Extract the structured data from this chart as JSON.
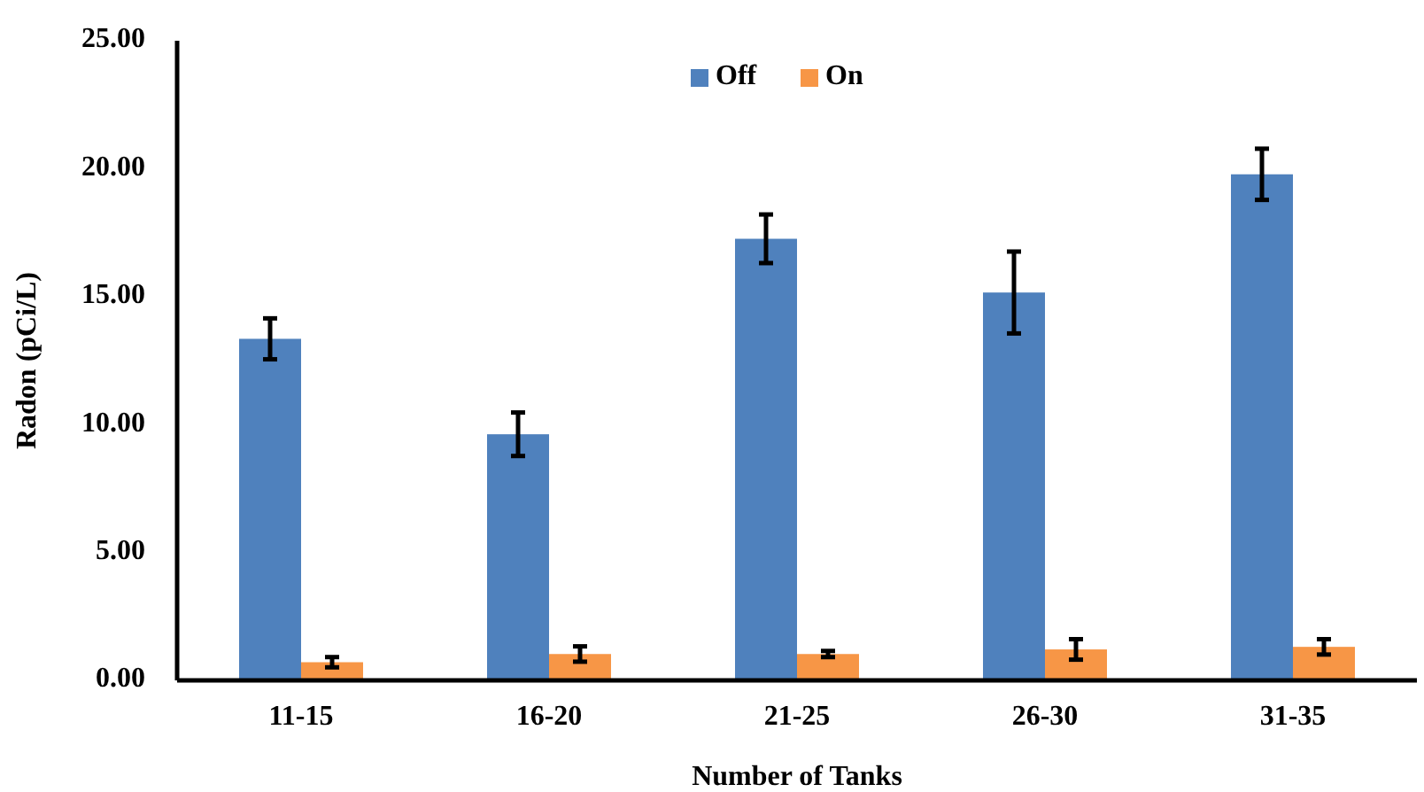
{
  "chart_data": {
    "type": "bar",
    "xlabel": "Number of Tanks",
    "ylabel": "Radon (pCi/L)",
    "categories": [
      "11-15",
      "16-20",
      "21-25",
      "26-30",
      "31-35"
    ],
    "series": [
      {
        "name": "Off",
        "color": "#4f81bd",
        "values": [
          13.35,
          9.62,
          17.26,
          15.16,
          19.78
        ],
        "errors": [
          0.8,
          0.85,
          0.95,
          1.6,
          1.0
        ]
      },
      {
        "name": "On",
        "color": "#f79646",
        "values": [
          0.71,
          1.03,
          1.03,
          1.21,
          1.31
        ],
        "errors": [
          0.2,
          0.3,
          0.12,
          0.4,
          0.3
        ]
      }
    ],
    "ylim": [
      0,
      25
    ],
    "yticks": [
      {
        "value": 0,
        "label": "0.00"
      },
      {
        "value": 5,
        "label": "5.00"
      },
      {
        "value": 10,
        "label": "10.00"
      },
      {
        "value": 15,
        "label": "15.00"
      },
      {
        "value": 20,
        "label": "20.00"
      },
      {
        "value": 25,
        "label": "25.00"
      }
    ],
    "grid": false,
    "legend": "top"
  }
}
